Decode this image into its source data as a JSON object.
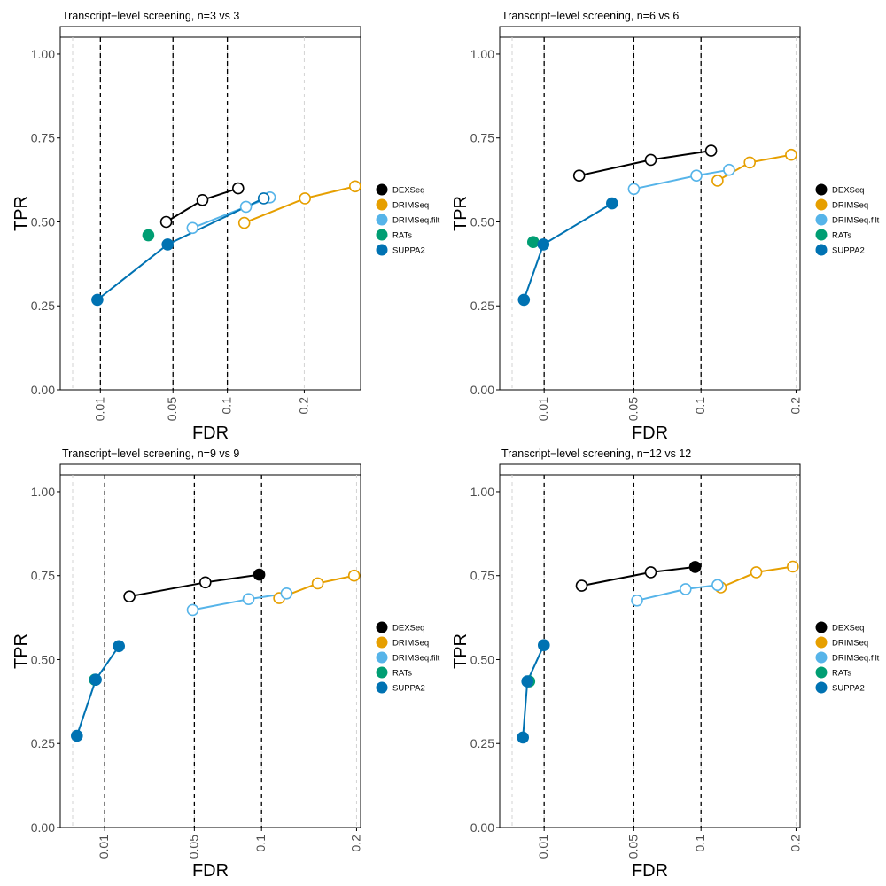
{
  "legend_entries": [
    {
      "name": "DEXSeq",
      "color": "#000000"
    },
    {
      "name": "DRIMSeq",
      "color": "#E69F00"
    },
    {
      "name": "DRIMSeq.filt",
      "color": "#56B4E9"
    },
    {
      "name": "RATs",
      "color": "#009E73"
    },
    {
      "name": "SUPPA2",
      "color": "#0072B2"
    }
  ],
  "chart_data": [
    {
      "type": "line",
      "title": "Transcript−level screening, n=3 vs 3",
      "xlabel": "FDR",
      "ylabel": "TPR",
      "x_scale": "sqrt",
      "xlim": [
        0.001,
        0.295
      ],
      "ylim": [
        0,
        1.05
      ],
      "xticks": [
        "0.01",
        "0.05",
        "0.1",
        "0.2"
      ],
      "yticks": [
        "0.00",
        "0.25",
        "0.50",
        "0.75",
        "1.00"
      ],
      "threshold_lines": [
        0.01,
        0.05,
        0.1
      ],
      "legend_position": "right",
      "series": [
        {
          "name": "DEXSeq",
          "color": "#000000",
          "points": [
            [
              0.045,
              0.5
            ],
            [
              0.075,
              0.565
            ],
            [
              0.112,
              0.6
            ]
          ],
          "filled": [
            false,
            false,
            false
          ]
        },
        {
          "name": "DRIMSeq",
          "color": "#E69F00",
          "points": [
            [
              0.119,
              0.497
            ],
            [
              0.201,
              0.57
            ],
            [
              0.285,
              0.606
            ]
          ],
          "filled": [
            false,
            false,
            false
          ]
        },
        {
          "name": "DRIMSeq.filt",
          "color": "#56B4E9",
          "points": [
            [
              0.066,
              0.482
            ],
            [
              0.121,
              0.545
            ],
            [
              0.151,
              0.573
            ]
          ],
          "filled": [
            false,
            false,
            false
          ]
        },
        {
          "name": "RATs",
          "color": "#009E73",
          "points": [
            [
              0.033,
              0.46
            ]
          ],
          "filled": [
            true
          ]
        },
        {
          "name": "SUPPA2",
          "color": "#0072B2",
          "points": [
            [
              0.009,
              0.268
            ],
            [
              0.046,
              0.433
            ],
            [
              0.143,
              0.57
            ]
          ],
          "filled": [
            true,
            true,
            false
          ]
        }
      ]
    },
    {
      "type": "line",
      "title": "Transcript−level screening, n=6 vs 6",
      "xlabel": "FDR",
      "ylabel": "TPR",
      "x_scale": "sqrt",
      "xlim": [
        0.0015,
        0.205
      ],
      "ylim": [
        0,
        1.05
      ],
      "xticks": [
        "0.01",
        "0.05",
        "0.1",
        "0.2"
      ],
      "yticks": [
        "0.00",
        "0.25",
        "0.50",
        "0.75",
        "1.00"
      ],
      "threshold_lines": [
        0.01,
        0.05,
        0.1
      ],
      "legend_position": "right",
      "series": [
        {
          "name": "DEXSeq",
          "color": "#000000",
          "points": [
            [
              0.022,
              0.638
            ],
            [
              0.061,
              0.685
            ],
            [
              0.109,
              0.712
            ]
          ],
          "filled": [
            false,
            false,
            false
          ]
        },
        {
          "name": "DRIMSeq",
          "color": "#E69F00",
          "points": [
            [
              0.115,
              0.623
            ],
            [
              0.147,
              0.677
            ],
            [
              0.194,
              0.7
            ]
          ],
          "filled": [
            false,
            false,
            false
          ]
        },
        {
          "name": "DRIMSeq.filt",
          "color": "#56B4E9",
          "points": [
            [
              0.05,
              0.598
            ],
            [
              0.096,
              0.638
            ],
            [
              0.126,
              0.655
            ]
          ],
          "filled": [
            false,
            false,
            false
          ]
        },
        {
          "name": "RATs",
          "color": "#009E73",
          "points": [
            [
              0.0072,
              0.44
            ]
          ],
          "filled": [
            true
          ]
        },
        {
          "name": "SUPPA2",
          "color": "#0072B2",
          "points": [
            [
              0.0052,
              0.268
            ],
            [
              0.0098,
              0.433
            ],
            [
              0.0375,
              0.555
            ]
          ],
          "filled": [
            true,
            true,
            true
          ]
        }
      ]
    },
    {
      "type": "line",
      "title": "Transcript−level screening, n=9 vs 9",
      "xlabel": "FDR",
      "ylabel": "TPR",
      "x_scale": "sqrt",
      "xlim": [
        0.0015,
        0.205
      ],
      "ylim": [
        0,
        1.05
      ],
      "xticks": [
        "0.01",
        "0.05",
        "0.1",
        "0.2"
      ],
      "yticks": [
        "0.00",
        "0.25",
        "0.50",
        "0.75",
        "1.00"
      ],
      "threshold_lines": [
        0.01,
        0.05,
        0.1
      ],
      "legend_position": "right",
      "series": [
        {
          "name": "DEXSeq",
          "color": "#000000",
          "points": [
            [
              0.018,
              0.688
            ],
            [
              0.057,
              0.73
            ],
            [
              0.098,
              0.753
            ]
          ],
          "filled": [
            false,
            false,
            true
          ]
        },
        {
          "name": "DRIMSeq",
          "color": "#E69F00",
          "points": [
            [
              0.116,
              0.683
            ],
            [
              0.155,
              0.727
            ],
            [
              0.197,
              0.75
            ]
          ],
          "filled": [
            false,
            false,
            false
          ]
        },
        {
          "name": "DRIMSeq.filt",
          "color": "#56B4E9",
          "points": [
            [
              0.049,
              0.648
            ],
            [
              0.089,
              0.68
            ],
            [
              0.123,
              0.697
            ]
          ],
          "filled": [
            false,
            false,
            false
          ]
        },
        {
          "name": "RATs",
          "color": "#009E73",
          "points": [
            [
              0.0075,
              0.44
            ]
          ],
          "filled": [
            true
          ]
        },
        {
          "name": "SUPPA2",
          "color": "#0072B2",
          "points": [
            [
              0.0038,
              0.273
            ],
            [
              0.0077,
              0.44
            ],
            [
              0.0143,
              0.54
            ]
          ],
          "filled": [
            true,
            true,
            true
          ]
        }
      ]
    },
    {
      "type": "line",
      "title": "Transcript−level screening, n=12 vs 12",
      "xlabel": "FDR",
      "ylabel": "TPR",
      "x_scale": "sqrt",
      "xlim": [
        0.0015,
        0.205
      ],
      "ylim": [
        0,
        1.05
      ],
      "xticks": [
        "0.01",
        "0.05",
        "0.1",
        "0.2"
      ],
      "yticks": [
        "0.00",
        "0.25",
        "0.50",
        "0.75",
        "1.00"
      ],
      "threshold_lines": [
        0.01,
        0.05,
        0.1
      ],
      "legend_position": "right",
      "series": [
        {
          "name": "DEXSeq",
          "color": "#000000",
          "points": [
            [
              0.023,
              0.72
            ],
            [
              0.061,
              0.76
            ],
            [
              0.095,
              0.776
            ]
          ],
          "filled": [
            false,
            false,
            true
          ]
        },
        {
          "name": "DRIMSeq",
          "color": "#E69F00",
          "points": [
            [
              0.118,
              0.715
            ],
            [
              0.154,
              0.76
            ],
            [
              0.196,
              0.777
            ]
          ],
          "filled": [
            false,
            false,
            false
          ]
        },
        {
          "name": "DRIMSeq.filt",
          "color": "#56B4E9",
          "points": [
            [
              0.052,
              0.676
            ],
            [
              0.087,
              0.71
            ],
            [
              0.115,
              0.722
            ]
          ],
          "filled": [
            false,
            false,
            false
          ]
        },
        {
          "name": "RATs",
          "color": "#009E73",
          "points": [
            [
              0.0063,
              0.435
            ]
          ],
          "filled": [
            true
          ]
        },
        {
          "name": "SUPPA2",
          "color": "#0072B2",
          "points": [
            [
              0.005,
              0.268
            ],
            [
              0.0059,
              0.435
            ],
            [
              0.0099,
              0.543
            ]
          ],
          "filled": [
            true,
            true,
            true
          ]
        }
      ]
    }
  ]
}
